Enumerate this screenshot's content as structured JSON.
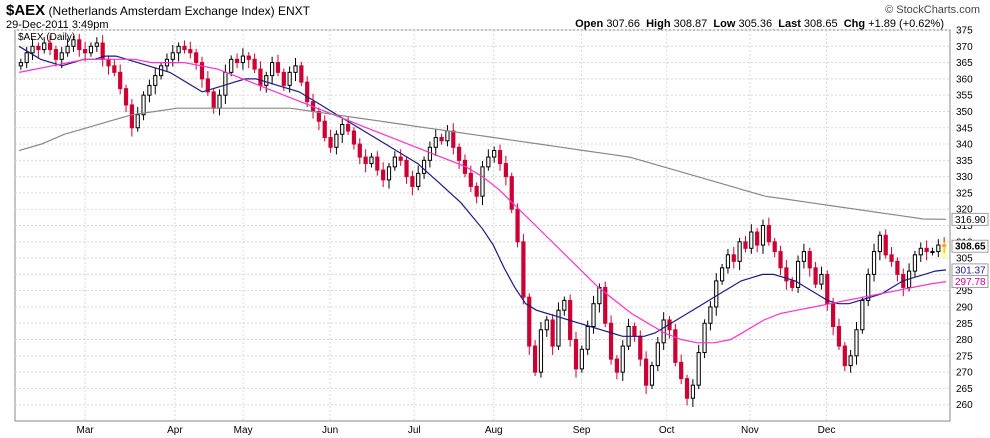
{
  "header": {
    "symbol": "$AEX",
    "name": "(Netherlands Amsterdam Exchange Index)",
    "exchange": "ENXT",
    "datetime": "29-Dec-2011 3:49pm",
    "brand": "© StockCharts.com",
    "open_label": "Open",
    "open": "307.66",
    "high_label": "High",
    "high": "308.87",
    "low_label": "Low",
    "low": "305.36",
    "last_label": "Last",
    "last": "308.65",
    "chg_label": "Chg",
    "chg": "+1.89 (+0.62%)"
  },
  "chart_data": {
    "type": "line",
    "title": "$AEX (Daily)",
    "ylim": [
      255,
      375
    ],
    "yticks": [
      260,
      265,
      270,
      275,
      280,
      285,
      290,
      295,
      300,
      305,
      310,
      315,
      320,
      325,
      330,
      335,
      340,
      345,
      350,
      355,
      360,
      365,
      370,
      375
    ],
    "months": [
      "Mar",
      "Apr",
      "May",
      "Jun",
      "Jul",
      "Aug",
      "Sep",
      "Oct",
      "Nov",
      "Dec"
    ],
    "month_positions": [
      0.075,
      0.171,
      0.244,
      0.337,
      0.427,
      0.512,
      0.606,
      0.697,
      0.786,
      0.868
    ],
    "grid": true,
    "colors": {
      "up": "#000000",
      "down": "#cc0033",
      "sma50": "#1a1a80",
      "sma20": "#ff33cc",
      "sma200": "#888888",
      "last_tag": "#ffff66"
    },
    "series": [
      {
        "name": "Close",
        "type": "candlestick",
        "values": [
          365,
          368,
          370,
          369,
          371,
          369,
          366,
          368,
          370,
          372,
          369,
          368,
          370,
          371,
          366,
          364,
          362,
          357,
          352,
          345,
          349,
          355,
          358,
          361,
          364,
          366,
          368,
          370,
          369,
          368,
          365,
          360,
          356,
          351,
          355,
          362,
          366,
          365,
          367,
          366,
          363,
          358,
          361,
          365,
          362,
          358,
          362,
          364,
          359,
          353,
          350,
          347,
          342,
          339,
          343,
          346,
          344,
          340,
          336,
          334,
          336,
          332,
          329,
          333,
          336,
          335,
          330,
          327,
          331,
          335,
          339,
          342,
          341,
          344,
          339,
          335,
          331,
          327,
          324,
          333,
          336,
          338,
          334,
          330,
          320,
          310,
          293,
          278,
          270,
          283,
          286,
          278,
          289,
          292,
          280,
          271,
          277,
          284,
          291,
          296,
          285,
          274,
          270,
          278,
          284,
          281,
          274,
          266,
          272,
          279,
          286,
          283,
          273,
          268,
          262,
          266,
          276,
          285,
          290,
          298,
          302,
          306,
          304,
          310,
          308,
          313,
          309,
          315,
          310,
          307,
          302,
          298,
          296,
          304,
          307,
          302,
          297,
          300,
          291,
          284,
          278,
          272,
          275,
          283,
          292,
          300,
          307,
          312,
          306,
          304,
          300,
          296,
          301,
          306,
          308,
          307,
          307,
          309,
          308.65
        ]
      }
    ],
    "overlays": [
      {
        "name": "SMA50",
        "values": [
          370,
          368,
          366,
          365,
          364,
          365,
          366,
          366,
          367,
          367,
          366,
          365,
          364,
          363,
          362,
          360,
          358,
          356,
          357,
          358,
          359,
          360,
          360,
          359,
          358,
          357,
          356,
          354,
          352,
          350,
          348,
          346,
          344,
          342,
          340,
          338,
          336,
          334,
          331,
          328,
          325,
          322,
          318,
          314,
          309,
          302,
          296,
          291,
          289,
          288,
          287,
          286,
          285,
          284,
          283,
          282,
          281,
          281,
          281,
          282,
          284,
          286,
          288,
          290,
          292,
          294,
          296,
          298,
          299,
          300,
          300,
          299,
          298,
          296,
          294,
          292,
          291,
          291,
          292,
          293,
          294,
          296,
          298,
          299,
          300,
          301,
          301.37
        ]
      },
      {
        "name": "SMA20",
        "values": [
          362,
          363,
          364,
          365,
          366,
          366,
          366,
          366,
          365,
          365,
          365,
          364,
          363,
          361,
          359,
          357,
          355,
          353,
          351,
          349,
          347,
          345,
          343,
          341,
          339,
          337,
          335,
          333,
          330,
          326,
          321,
          316,
          311,
          306,
          301,
          296,
          292,
          288,
          285,
          282,
          280,
          279,
          279,
          280,
          283,
          286,
          288,
          289,
          290,
          291,
          292,
          293,
          294,
          295,
          296,
          297,
          297.78
        ]
      },
      {
        "name": "SMA200",
        "values": [
          338,
          340,
          343,
          345,
          347,
          349,
          350,
          351,
          351,
          351,
          351,
          351,
          351,
          350,
          349,
          348,
          347,
          346,
          345,
          344,
          343,
          342,
          341,
          340,
          339,
          338,
          337,
          336,
          334,
          332,
          330,
          328,
          326,
          324,
          323,
          322,
          321,
          320,
          319,
          318,
          317,
          316.9
        ]
      }
    ],
    "last_values": {
      "close": "308.65",
      "sma200": "316.90",
      "sma50": "301.37",
      "sma20": "297.78"
    }
  }
}
